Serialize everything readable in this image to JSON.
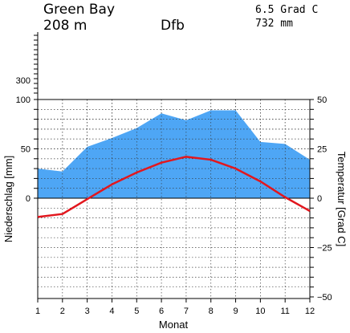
{
  "header": {
    "station": "Green Bay",
    "elevation": "208 m",
    "climate_class": "Dfb",
    "mean_temp": "6.5 Grad C",
    "annual_precip": "732 mm"
  },
  "chart_data": {
    "type": "line",
    "xlabel": "Monat",
    "ylabel_left": "Niederschlag [mm]",
    "ylabel_right": "Temperatur [Grad C]",
    "x": [
      1,
      2,
      3,
      4,
      5,
      6,
      7,
      8,
      9,
      10,
      11,
      12
    ],
    "x_ticks": [
      "1",
      "2",
      "3",
      "4",
      "5",
      "6",
      "7",
      "8",
      "9",
      "10",
      "11",
      "12"
    ],
    "precip_ticks": [
      "0",
      "50",
      "100",
      "300"
    ],
    "temp_ticks": [
      "50",
      "25",
      "0",
      "−25",
      "−50"
    ],
    "series": [
      {
        "name": "Niederschlag",
        "kind": "area",
        "axis": "left",
        "unit": "mm",
        "color": "#4ea6f5",
        "values": [
          30,
          27,
          52,
          61,
          71,
          86,
          79,
          89,
          89,
          57,
          55,
          39
        ]
      },
      {
        "name": "Temperatur",
        "kind": "line",
        "axis": "right",
        "unit": "Grad C",
        "color": "#e2171e",
        "values": [
          -9.5,
          -8,
          -0.5,
          7,
          13,
          18,
          21,
          19.5,
          15,
          8.5,
          0.5,
          -6.5
        ]
      }
    ],
    "y_left_range": [
      0,
      100
    ],
    "y_right_range": [
      -50,
      50
    ],
    "grid": true
  }
}
